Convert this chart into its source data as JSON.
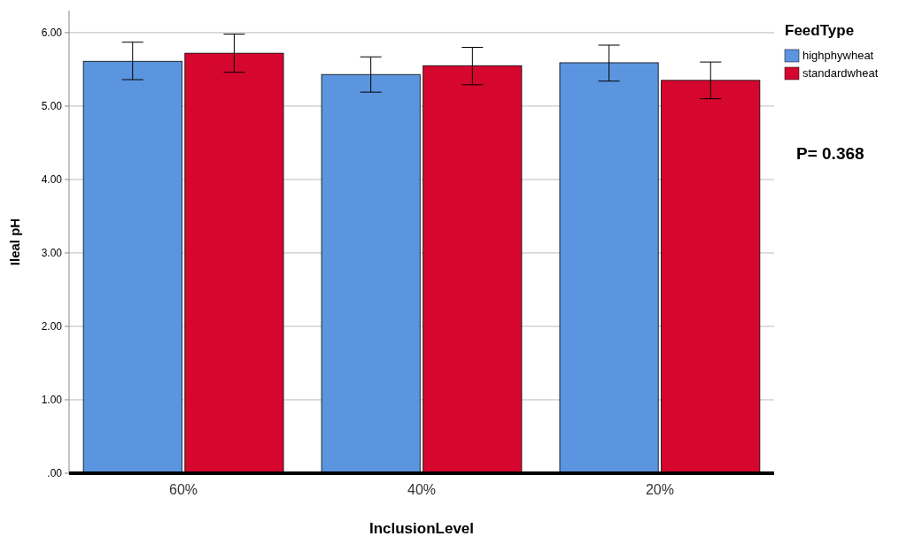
{
  "chart_data": {
    "type": "bar",
    "xlabel": "InclusionLevel",
    "ylabel": "Ileal pH",
    "legend_title": "FeedType",
    "categories": [
      "60%",
      "40%",
      "20%"
    ],
    "series": [
      {
        "name": "highphywheat",
        "color": "#5b95e0",
        "values": [
          5.61,
          5.43,
          5.59
        ],
        "errors": [
          [
            5.36,
            5.87
          ],
          [
            5.19,
            5.67
          ],
          [
            5.34,
            5.83
          ]
        ]
      },
      {
        "name": "standardwheat",
        "color": "#d5072f",
        "values": [
          5.72,
          5.55,
          5.35
        ],
        "errors": [
          [
            5.46,
            5.98
          ],
          [
            5.29,
            5.8
          ],
          [
            5.1,
            5.6
          ]
        ]
      }
    ],
    "ylim": [
      0,
      6.3
    ],
    "yticks": [
      {
        "value": 0,
        "label": ".00"
      },
      {
        "value": 1,
        "label": "1.00"
      },
      {
        "value": 2,
        "label": "2.00"
      },
      {
        "value": 3,
        "label": "3.00"
      },
      {
        "value": 4,
        "label": "4.00"
      },
      {
        "value": 5,
        "label": "5.00"
      },
      {
        "value": 6,
        "label": "6.00"
      }
    ],
    "grid": "y",
    "legend": "top right",
    "annotations": [
      "P= 0.368"
    ]
  }
}
